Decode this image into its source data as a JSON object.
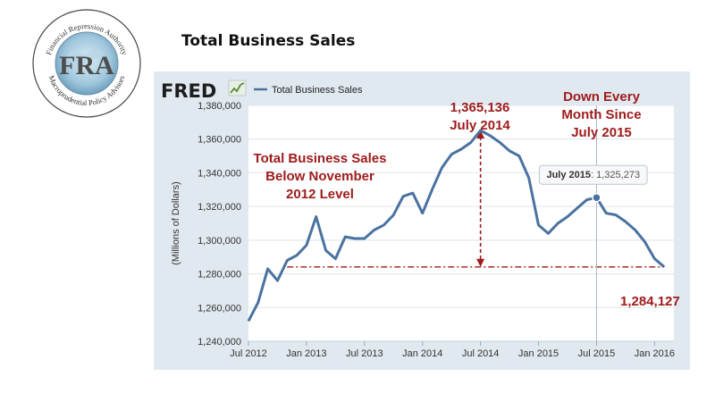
{
  "slide": {
    "title": "Total Business Sales"
  },
  "logo": {
    "monogram": "FRA",
    "ring_top": "Financial Repression Authority",
    "ring_bottom": "Macroprudential Policy Advisors"
  },
  "fred": {
    "brand": "FRED",
    "legend_label": "Total Business Sales",
    "icon": "trend-chart-icon"
  },
  "tooltip": {
    "label": "July 2015",
    "value": "1,325,273"
  },
  "annotations": {
    "peak_value": "1,365,136",
    "peak_date": "July 2014",
    "down_line1": "Down Every",
    "down_line2": "Month Since",
    "down_line3": "July 2015",
    "below_line1": "Total Business Sales",
    "below_line2": "Below November",
    "below_line3": "2012 Level",
    "latest_value": "1,284,127"
  },
  "colors": {
    "series": "#4a72a0",
    "annotation": "#9e1b1b",
    "panel": "#e1e9f0",
    "plot": "#ffffff"
  },
  "chart_data": {
    "type": "line",
    "title": "Total Business Sales",
    "xlabel": "",
    "ylabel": "(Millions of Dollars)",
    "ylim": [
      1240000,
      1380000
    ],
    "xlim": [
      "2012-07",
      "2016-03"
    ],
    "yticks": [
      1240000,
      1260000,
      1280000,
      1300000,
      1320000,
      1340000,
      1360000,
      1380000
    ],
    "ytick_labels": [
      "1,240,000",
      "1,260,000",
      "1,280,000",
      "1,300,000",
      "1,320,000",
      "1,340,000",
      "1,360,000",
      "1,380,000"
    ],
    "xticks": [
      "2012-07",
      "2013-01",
      "2013-07",
      "2014-01",
      "2014-07",
      "2015-01",
      "2015-07",
      "2016-01"
    ],
    "xtick_labels": [
      "Jul 2012",
      "Jan 2013",
      "Jul 2013",
      "Jan 2014",
      "Jul 2014",
      "Jan 2015",
      "Jul 2015",
      "Jan 2016"
    ],
    "grid": "horizontal",
    "legend": "top-left",
    "series": [
      {
        "name": "Total Business Sales",
        "x": [
          "2012-07",
          "2012-08",
          "2012-09",
          "2012-10",
          "2012-11",
          "2012-12",
          "2013-01",
          "2013-02",
          "2013-03",
          "2013-04",
          "2013-05",
          "2013-06",
          "2013-07",
          "2013-08",
          "2013-09",
          "2013-10",
          "2013-11",
          "2013-12",
          "2014-01",
          "2014-02",
          "2014-03",
          "2014-04",
          "2014-05",
          "2014-06",
          "2014-07",
          "2014-08",
          "2014-09",
          "2014-10",
          "2014-11",
          "2014-12",
          "2015-01",
          "2015-02",
          "2015-03",
          "2015-04",
          "2015-05",
          "2015-06",
          "2015-07",
          "2015-08",
          "2015-09",
          "2015-10",
          "2015-11",
          "2015-12",
          "2016-01",
          "2016-02"
        ],
        "values": [
          1252000,
          1263000,
          1283000,
          1276000,
          1288000,
          1291000,
          1297000,
          1314000,
          1294000,
          1289000,
          1302000,
          1301000,
          1301000,
          1306000,
          1309000,
          1315000,
          1326000,
          1328000,
          1316000,
          1330000,
          1343000,
          1351000,
          1354000,
          1358000,
          1365136,
          1362000,
          1358000,
          1353000,
          1350000,
          1337000,
          1309000,
          1304000,
          1310000,
          1314000,
          1319000,
          1324000,
          1325273,
          1316000,
          1315000,
          1311000,
          1306000,
          1299000,
          1289000,
          1284127
        ]
      }
    ],
    "reference_lines": [
      {
        "kind": "horizontal",
        "y": 1284127,
        "x_from": "2012-11",
        "x_to": "2016-02",
        "style": "dash-dot"
      },
      {
        "kind": "vertical",
        "x": "2014-07",
        "y_from": 1284127,
        "y_to": 1365136,
        "style": "dashed-arrow"
      }
    ],
    "highlight": {
      "x": "2015-07",
      "y": 1325273
    }
  }
}
